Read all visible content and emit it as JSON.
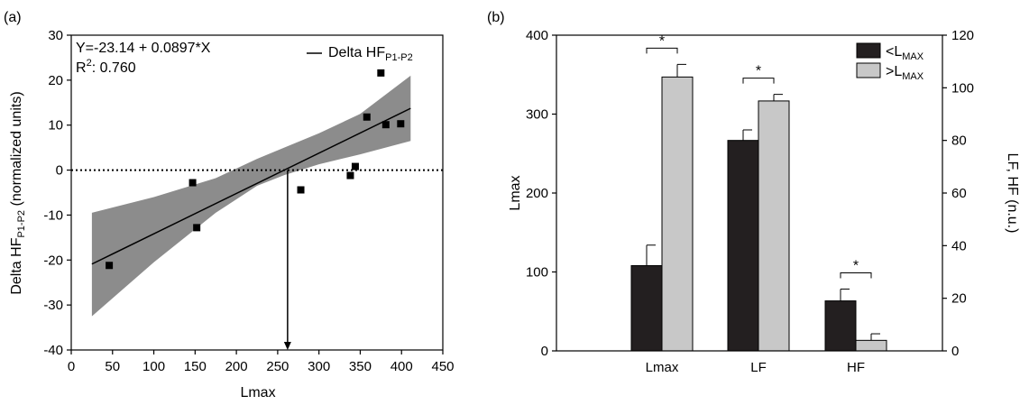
{
  "panel_a": {
    "panel_label": "(a)",
    "equation": "Y=-23.14 + 0.0897*X",
    "r2_prefix": "R",
    "r2_sup": "2",
    "r2_value": ": 0.760",
    "legend_text": "Delta HF",
    "legend_sub": "P1-P2",
    "ylabel_main": "Delta HF",
    "ylabel_sub": "P1-P2",
    "ylabel_tail": " (normalized units)"
  },
  "panel_b": {
    "panel_label": "(b)",
    "legend_prefix_lt": "<L",
    "legend_prefix_gt": ">L",
    "legend_sub": "MAX",
    "star": "*"
  },
  "chart_data": [
    {
      "type": "scatter",
      "xlabel": "Lmax",
      "xlim": [
        0,
        450
      ],
      "ylim": [
        -40,
        30
      ],
      "xticks": [
        0,
        50,
        100,
        150,
        200,
        250,
        300,
        350,
        400,
        450
      ],
      "yticks": [
        -40,
        -30,
        -20,
        -10,
        0,
        10,
        20,
        30
      ],
      "points": [
        {
          "x": 46,
          "y": -21.2
        },
        {
          "x": 147,
          "y": -2.8
        },
        {
          "x": 152,
          "y": -12.8
        },
        {
          "x": 278,
          "y": -4.4
        },
        {
          "x": 338,
          "y": -1.2
        },
        {
          "x": 344,
          "y": 0.8
        },
        {
          "x": 358,
          "y": 11.8
        },
        {
          "x": 375,
          "y": 21.6
        },
        {
          "x": 381,
          "y": 10.1
        },
        {
          "x": 399,
          "y": 10.3
        }
      ],
      "regression": {
        "intercept": -23.14,
        "slope": 0.0897,
        "x_range": [
          25,
          411
        ]
      },
      "confidence_band": {
        "x": [
          25,
          100,
          175,
          225,
          258,
          300,
          350,
          411
        ],
        "lower": [
          -32.5,
          -20.5,
          -9.5,
          -3.5,
          -1.1,
          1.3,
          3.5,
          6.5
        ],
        "upper": [
          -9.5,
          -6.0,
          -1.8,
          2.5,
          5.0,
          8.2,
          12.5,
          21.0
        ]
      },
      "zero_reference_y": 0,
      "arrow_x": 262,
      "grid": false,
      "legend_position": "top-right"
    },
    {
      "type": "bar",
      "categories": [
        "Lmax",
        "LF",
        "HF"
      ],
      "ylabel": "Lmax",
      "y2label": "LF, HF (n.u.)",
      "ylim": [
        0,
        400
      ],
      "y2lim": [
        0,
        120
      ],
      "yticks": [
        0,
        100,
        200,
        300,
        400
      ],
      "y2ticks": [
        0,
        20,
        40,
        60,
        80,
        100,
        120
      ],
      "series": [
        {
          "name": "<LMAX",
          "color": "#231f20",
          "values": [
            108,
            80,
            19
          ],
          "errors": [
            26,
            4,
            4.5
          ]
        },
        {
          "name": ">LMAX",
          "color": "#c8c8c8",
          "values": [
            347,
            95,
            4
          ],
          "errors": [
            16,
            2.5,
            2.5
          ]
        }
      ],
      "axes_used": [
        "left",
        "right",
        "right"
      ],
      "significance": [
        "*",
        "*",
        "*"
      ],
      "grid": false,
      "legend_position": "top-right"
    }
  ]
}
